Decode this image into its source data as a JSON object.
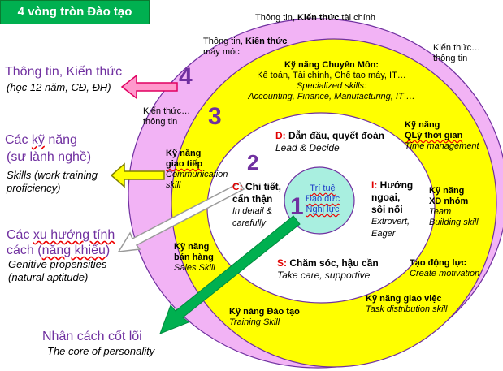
{
  "title": "4 vòng tròn Đào tạo",
  "numbers": {
    "n1": "1",
    "n2": "2",
    "n3": "3",
    "n4": "4"
  },
  "ring4": {
    "top_prefix": "Thông tin, ",
    "top_bold": "Kiến thức",
    "top_suffix": " tài chính",
    "right_line1": "Kiến thức…",
    "right_line2": "thông tin",
    "left_line1": "Kiến thức…",
    "left_line2": "thông tin"
  },
  "ring3": {
    "machine_line1_prefix": "Thông tin, ",
    "machine_line1_bold": "Kiến thức",
    "machine_line2": "máy móc",
    "pro_title": "Kỹ năng Chuyên Môn:",
    "pro_line2": "Kế toán, Tài chính, Chế tạo máy, IT…",
    "pro_line3": "Specialized skills:",
    "pro_line4": "Accounting, Finance, Manufacturing, IT …",
    "time_title1": "Kỹ năng",
    "time_title2": "QLý thời gian",
    "time_en": "Time management",
    "comm_title1": "Kỹ năng",
    "comm_title2": "giao tiếp",
    "comm_en1": "Communication",
    "comm_en2": "skill",
    "team_title1": "Kỹ năng",
    "team_title2": "XD nhóm",
    "team_en1": "Team",
    "team_en2": "Building skill",
    "sales_title1": "Kỹ năng",
    "sales_title2": "bán hàng",
    "sales_en": "Sales Skill",
    "motiv_title": "Tạo động lực",
    "motiv_en": "Create motivation",
    "task_title": "Kỹ năng giao việc",
    "task_en": "Task distribution skill",
    "training_title": "Kỹ năng Đào tạo",
    "training_en": "Training Skill"
  },
  "ring2": {
    "d_letter": "D:",
    "d_text": " Dẫn đầu, quyết đoán",
    "d_en": "Lead & Decide",
    "c_letter": "C:",
    "c_text1": " Chi tiết,",
    "c_text2": "cẩn thận",
    "c_en1": "In detail &",
    "c_en2": "carefully",
    "i_letter": "I:",
    "i_text1": " Hướng",
    "i_text2": "ngoại,",
    "i_text3": "sôi nổi",
    "i_en1": "Extrovert,",
    "i_en2": "Eager",
    "s_letter": "S:",
    "s_text": " Chăm sóc, hậu cần",
    "s_en": "Take care, supportive"
  },
  "ring1": {
    "line1": "Trí tuệ",
    "line2": "Đạo đức",
    "line3": "Nghị lực"
  },
  "left_labels": {
    "l4_main": "Thông tin, Kiến thức",
    "l4_sub": "(học 12 năm, CĐ, ĐH)",
    "l3_main1": "Các ",
    "l3_main_u": "kỹ",
    "l3_main2": " năng",
    "l3_paren": "(sư lành nghề)",
    "l3_sub1": "Skills (work training",
    "l3_sub2": "proficiency)",
    "l2_main1": "Các ",
    "l2_main_u1": "xu hướng tính",
    "l2_main2a": "cách",
    "l2_main2b": " (",
    "l2_main_u2": "năng khiếu",
    "l2_main2c": ")",
    "l2_sub1": "Genitive propensities",
    "l2_sub2": "(natural aptitude)",
    "l1_main": "Nhân cách cốt lõi",
    "l1_sub": "The core of personality"
  },
  "colors": {
    "title_bg": "#00b050",
    "ring4": "#f2b3f5",
    "ring3": "#ffff00",
    "ring2": "#ffffff",
    "core": "#a9efe0",
    "number": "#7030a0",
    "arrow_pink": "#ff99cc",
    "arrow_yellow": "#ffff00",
    "arrow_green": "#00b050"
  }
}
